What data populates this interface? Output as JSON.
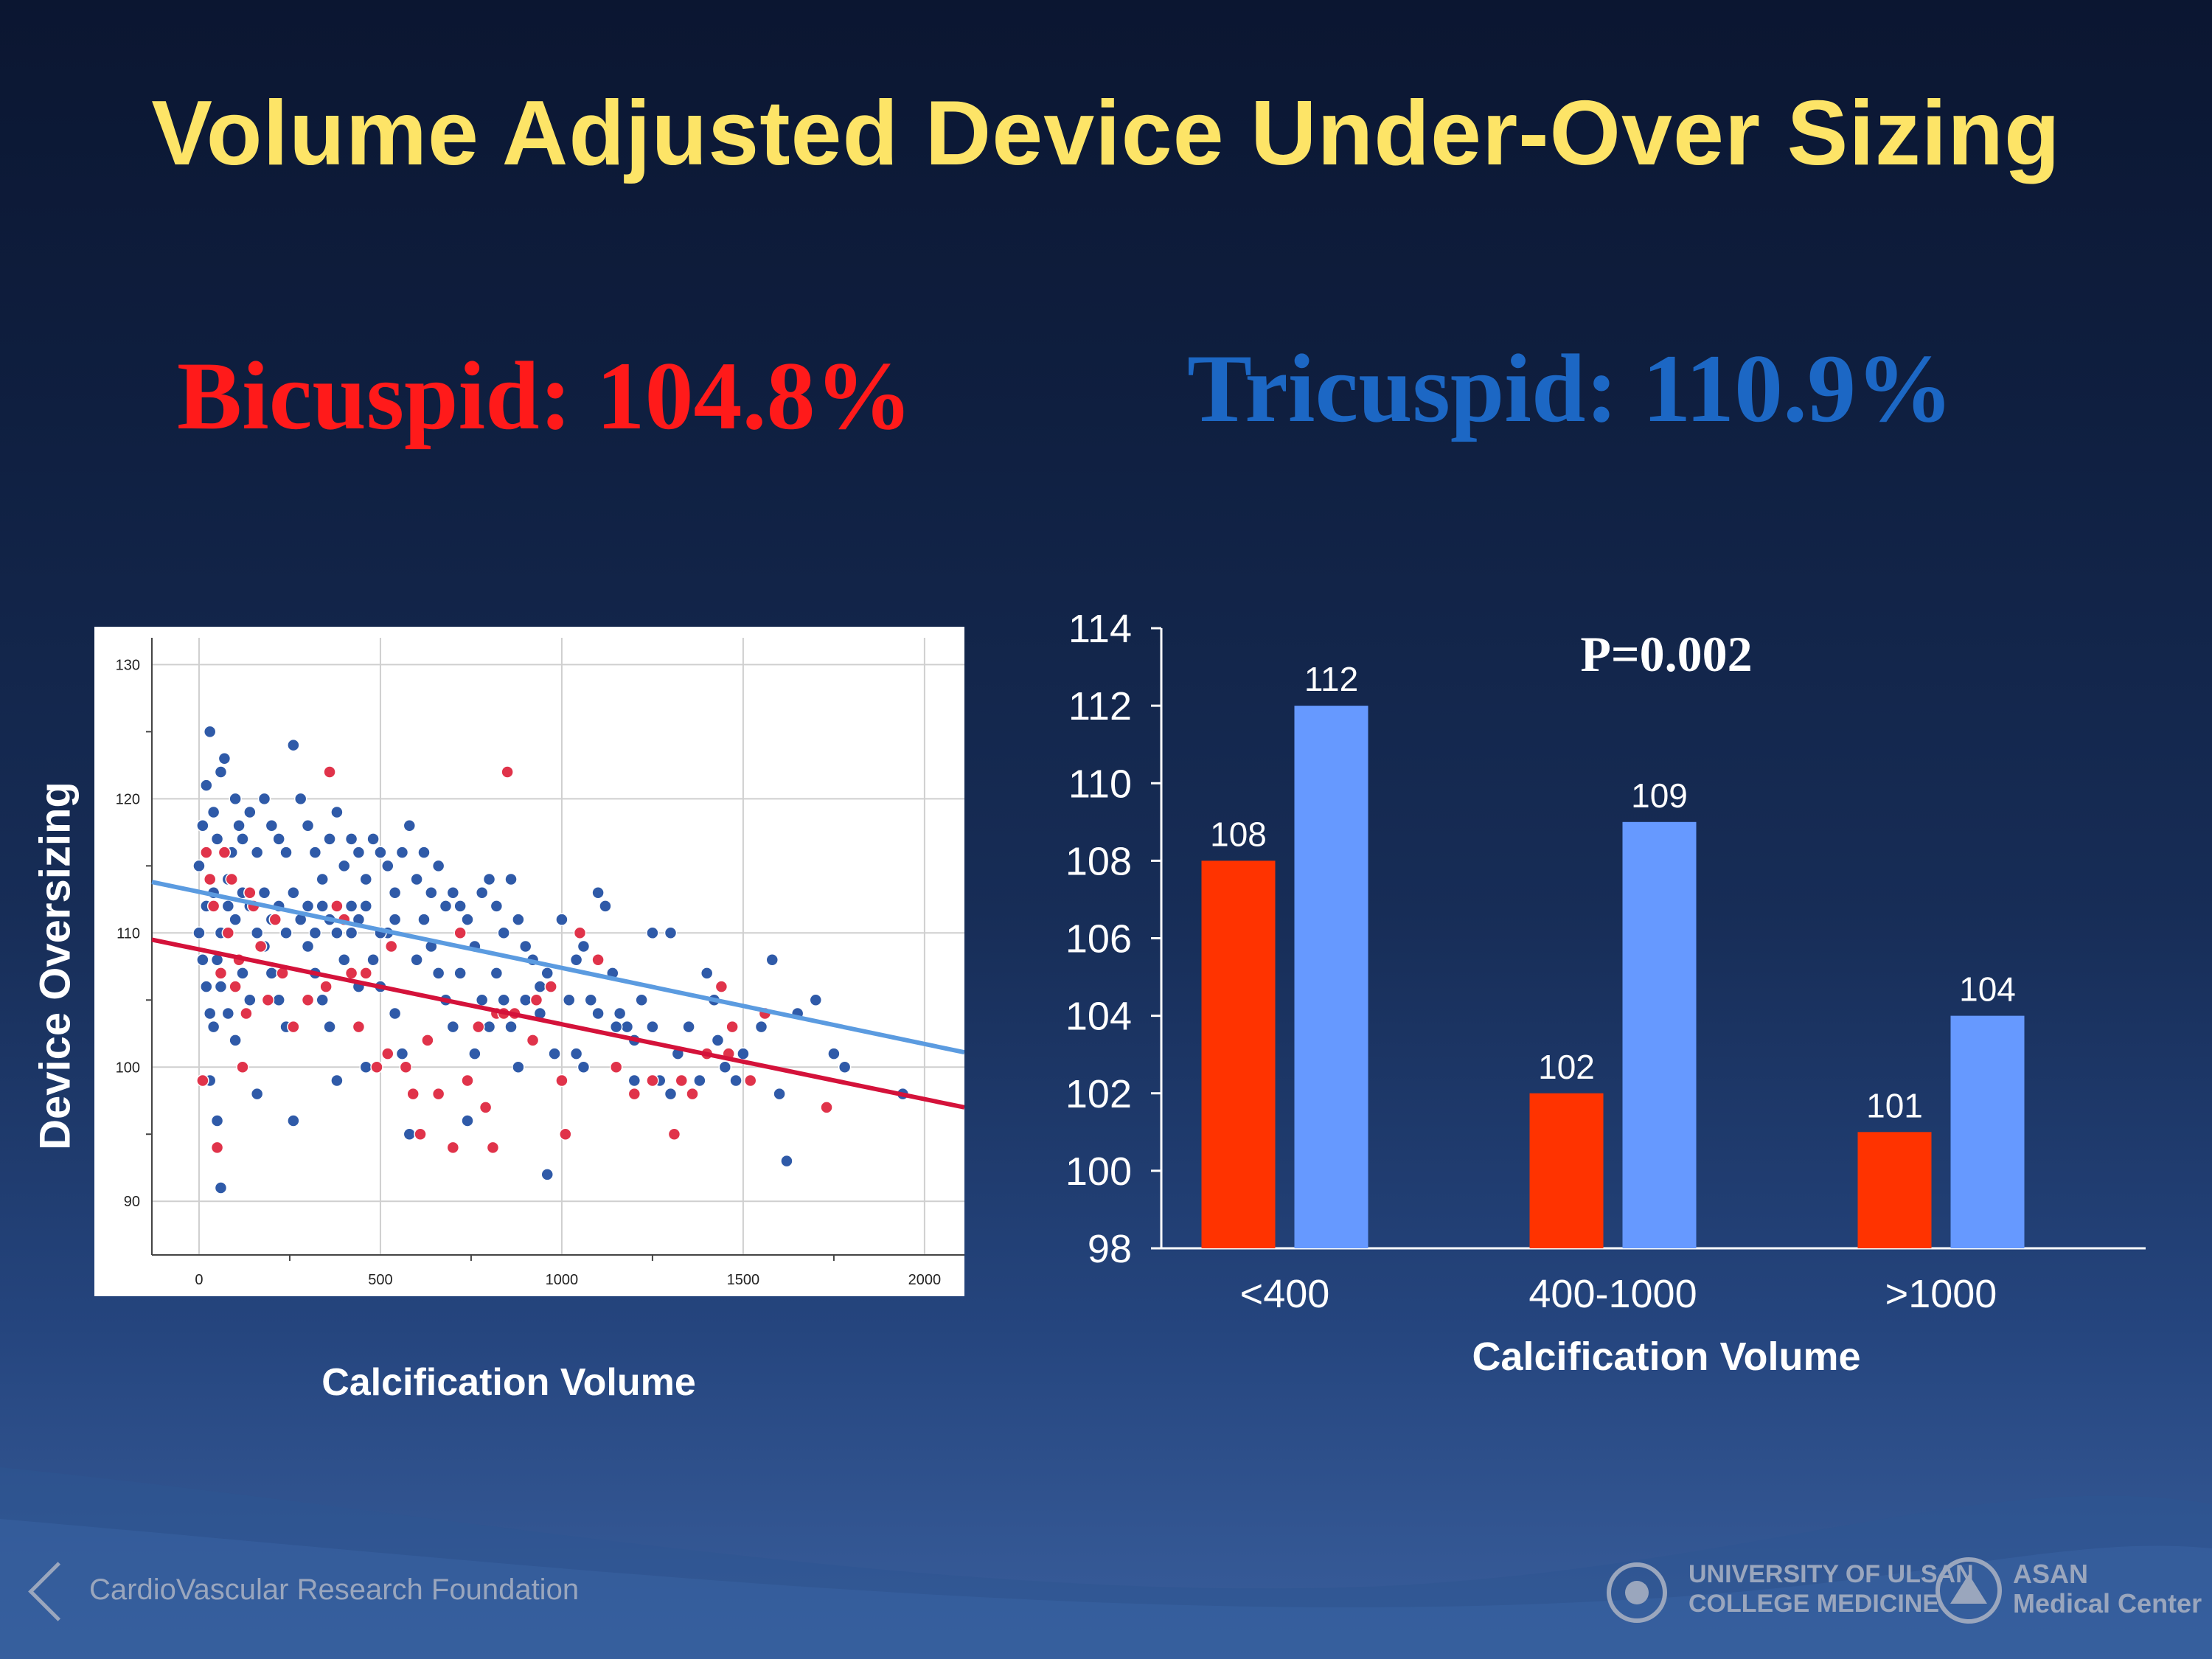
{
  "title": "Volume Adjusted Device Under-Over Sizing",
  "stats": {
    "bicuspid": "Bicuspid: 104.8%",
    "tricuspid": "Tricuspid: 110.9%"
  },
  "colors": {
    "title": "#fde467",
    "bicuspid": "#ff1a1a",
    "tricuspid": "#1c67c4",
    "scatter_bicuspid": "#e0334a",
    "scatter_tricuspid": "#2f5aa8",
    "bar_bicuspid": "#ff3300",
    "bar_tricuspid": "#6699ff"
  },
  "footer": {
    "left": "CardioVascular Research Foundation",
    "university": "UNIVERSITY OF ULSAN\nCOLLEGE MEDICINE",
    "asan": "ASAN\nMedical Center"
  },
  "chart_data": [
    {
      "type": "scatter",
      "xlabel": "Calcification Volume",
      "ylabel": "Device Oversizing",
      "xlim": [
        -130,
        2110
      ],
      "ylim": [
        86,
        132
      ],
      "xticks": [
        0,
        500,
        1000,
        1500,
        2000
      ],
      "yticks": [
        90,
        100,
        110,
        120,
        130
      ],
      "grid": true,
      "series": [
        {
          "color": "#2f5aa8",
          "fit": [
            [
              -130,
              113.8
            ],
            [
              2110,
              101.1
            ]
          ],
          "points": [
            [
              0,
              115
            ],
            [
              10,
              118
            ],
            [
              20,
              121
            ],
            [
              30,
              125
            ],
            [
              40,
              119
            ],
            [
              50,
              117
            ],
            [
              60,
              122
            ],
            [
              70,
              123
            ],
            [
              80,
              114
            ],
            [
              90,
              116
            ],
            [
              100,
              120
            ],
            [
              110,
              118
            ],
            [
              120,
              117
            ],
            [
              140,
              119
            ],
            [
              160,
              116
            ],
            [
              180,
              120
            ],
            [
              200,
              118
            ],
            [
              220,
              117
            ],
            [
              240,
              116
            ],
            [
              260,
              124
            ],
            [
              280,
              120
            ],
            [
              300,
              118
            ],
            [
              320,
              116
            ],
            [
              340,
              114
            ],
            [
              360,
              117
            ],
            [
              380,
              119
            ],
            [
              400,
              115
            ],
            [
              420,
              117
            ],
            [
              440,
              116
            ],
            [
              460,
              114
            ],
            [
              480,
              117
            ],
            [
              500,
              116
            ],
            [
              520,
              115
            ],
            [
              540,
              113
            ],
            [
              560,
              116
            ],
            [
              580,
              118
            ],
            [
              600,
              114
            ],
            [
              620,
              116
            ],
            [
              640,
              113
            ],
            [
              660,
              115
            ],
            [
              680,
              112
            ],
            [
              700,
              113
            ],
            [
              720,
              112
            ],
            [
              740,
              111
            ],
            [
              760,
              109
            ],
            [
              780,
              113
            ],
            [
              800,
              114
            ],
            [
              820,
              112
            ],
            [
              840,
              110
            ],
            [
              860,
              114
            ],
            [
              880,
              111
            ],
            [
              900,
              109
            ],
            [
              920,
              108
            ],
            [
              940,
              106
            ],
            [
              960,
              107
            ],
            [
              1000,
              111
            ],
            [
              1020,
              105
            ],
            [
              1040,
              108
            ],
            [
              1060,
              109
            ],
            [
              1080,
              105
            ],
            [
              1100,
              113
            ],
            [
              1120,
              112
            ],
            [
              1140,
              107
            ],
            [
              1160,
              104
            ],
            [
              1180,
              103
            ],
            [
              1200,
              102
            ],
            [
              1220,
              105
            ],
            [
              1250,
              110
            ],
            [
              1300,
              110
            ],
            [
              1320,
              101
            ],
            [
              1350,
              103
            ],
            [
              1400,
              107
            ],
            [
              1420,
              105
            ],
            [
              1450,
              100
            ],
            [
              1480,
              99
            ],
            [
              1500,
              101
            ],
            [
              1550,
              103
            ],
            [
              1580,
              108
            ],
            [
              1600,
              98
            ],
            [
              1620,
              93
            ],
            [
              1650,
              104
            ],
            [
              1700,
              105
            ],
            [
              1750,
              101
            ],
            [
              1780,
              100
            ],
            [
              1940,
              98
            ],
            [
              0,
              110
            ],
            [
              10,
              108
            ],
            [
              20,
              106
            ],
            [
              30,
              104
            ],
            [
              40,
              103
            ],
            [
              50,
              108
            ],
            [
              60,
              106
            ],
            [
              80,
              104
            ],
            [
              100,
              102
            ],
            [
              120,
              107
            ],
            [
              140,
              105
            ],
            [
              160,
              98
            ],
            [
              180,
              109
            ],
            [
              200,
              107
            ],
            [
              220,
              105
            ],
            [
              240,
              103
            ],
            [
              260,
              96
            ],
            [
              280,
              111
            ],
            [
              300,
              109
            ],
            [
              320,
              107
            ],
            [
              340,
              105
            ],
            [
              360,
              103
            ],
            [
              380,
              99
            ],
            [
              400,
              108
            ],
            [
              420,
              110
            ],
            [
              440,
              106
            ],
            [
              460,
              100
            ],
            [
              480,
              108
            ],
            [
              500,
              106
            ],
            [
              520,
              110
            ],
            [
              540,
              104
            ],
            [
              560,
              101
            ],
            [
              580,
              95
            ],
            [
              600,
              108
            ],
            [
              620,
              111
            ],
            [
              640,
              109
            ],
            [
              660,
              107
            ],
            [
              680,
              105
            ],
            [
              700,
              103
            ],
            [
              720,
              107
            ],
            [
              740,
              96
            ],
            [
              760,
              101
            ],
            [
              780,
              105
            ],
            [
              800,
              103
            ],
            [
              820,
              107
            ],
            [
              840,
              105
            ],
            [
              860,
              103
            ],
            [
              880,
              100
            ],
            [
              900,
              105
            ],
            [
              940,
              104
            ],
            [
              960,
              92
            ],
            [
              980,
              101
            ],
            [
              1040,
              101
            ],
            [
              1060,
              100
            ],
            [
              1100,
              104
            ],
            [
              1150,
              103
            ],
            [
              1200,
              99
            ],
            [
              1250,
              103
            ],
            [
              1270,
              99
            ],
            [
              1300,
              98
            ],
            [
              1380,
              99
            ],
            [
              1430,
              102
            ],
            [
              20,
              112
            ],
            [
              40,
              113
            ],
            [
              60,
              110
            ],
            [
              80,
              112
            ],
            [
              100,
              111
            ],
            [
              120,
              113
            ],
            [
              140,
              112
            ],
            [
              160,
              110
            ],
            [
              180,
              113
            ],
            [
              200,
              111
            ],
            [
              220,
              112
            ],
            [
              240,
              110
            ],
            [
              260,
              113
            ],
            [
              280,
              111
            ],
            [
              300,
              112
            ],
            [
              320,
              110
            ],
            [
              340,
              112
            ],
            [
              360,
              111
            ],
            [
              380,
              110
            ],
            [
              420,
              112
            ],
            [
              440,
              111
            ],
            [
              460,
              112
            ],
            [
              500,
              110
            ],
            [
              540,
              111
            ],
            [
              60,
              91
            ],
            [
              30,
              99
            ],
            [
              50,
              96
            ]
          ]
        },
        {
          "color": "#e0334a",
          "fit": [
            [
              -130,
              109.5
            ],
            [
              2110,
              97.0
            ]
          ],
          "points": [
            [
              10,
              99
            ],
            [
              20,
              116
            ],
            [
              30,
              114
            ],
            [
              40,
              112
            ],
            [
              50,
              94
            ],
            [
              60,
              107
            ],
            [
              70,
              116
            ],
            [
              80,
              110
            ],
            [
              90,
              114
            ],
            [
              100,
              106
            ],
            [
              110,
              108
            ],
            [
              120,
              100
            ],
            [
              130,
              104
            ],
            [
              140,
              113
            ],
            [
              150,
              112
            ],
            [
              170,
              109
            ],
            [
              190,
              105
            ],
            [
              210,
              111
            ],
            [
              230,
              107
            ],
            [
              260,
              103
            ],
            [
              300,
              105
            ],
            [
              350,
              106
            ],
            [
              360,
              122
            ],
            [
              380,
              112
            ],
            [
              400,
              111
            ],
            [
              420,
              107
            ],
            [
              440,
              103
            ],
            [
              460,
              107
            ],
            [
              490,
              100
            ],
            [
              520,
              101
            ],
            [
              530,
              109
            ],
            [
              570,
              100
            ],
            [
              590,
              98
            ],
            [
              610,
              95
            ],
            [
              630,
              102
            ],
            [
              660,
              98
            ],
            [
              700,
              94
            ],
            [
              720,
              110
            ],
            [
              740,
              99
            ],
            [
              770,
              103
            ],
            [
              790,
              97
            ],
            [
              810,
              94
            ],
            [
              820,
              104
            ],
            [
              840,
              104
            ],
            [
              850,
              122
            ],
            [
              870,
              104
            ],
            [
              920,
              102
            ],
            [
              930,
              105
            ],
            [
              970,
              106
            ],
            [
              1010,
              95
            ],
            [
              1000,
              99
            ],
            [
              1050,
              110
            ],
            [
              1100,
              108
            ],
            [
              1150,
              100
            ],
            [
              1200,
              98
            ],
            [
              1250,
              99
            ],
            [
              1310,
              95
            ],
            [
              1330,
              99
            ],
            [
              1360,
              98
            ],
            [
              1440,
              106
            ],
            [
              1470,
              103
            ],
            [
              1520,
              99
            ],
            [
              1560,
              104
            ],
            [
              1730,
              97
            ],
            [
              1400,
              101
            ],
            [
              1460,
              101
            ]
          ]
        }
      ]
    },
    {
      "type": "bar",
      "categories": [
        "<400",
        "400-1000",
        ">1000"
      ],
      "series": [
        {
          "values": [
            108,
            102,
            101
          ],
          "color": "#ff3300"
        },
        {
          "values": [
            112,
            109,
            104
          ],
          "color": "#6699ff"
        }
      ],
      "xlabel": "Calcification Volume",
      "ylabel": "",
      "ylim": [
        98,
        114
      ],
      "yticks": [
        98,
        100,
        102,
        104,
        106,
        108,
        110,
        112,
        114
      ],
      "annotation": "P=0.002"
    }
  ]
}
